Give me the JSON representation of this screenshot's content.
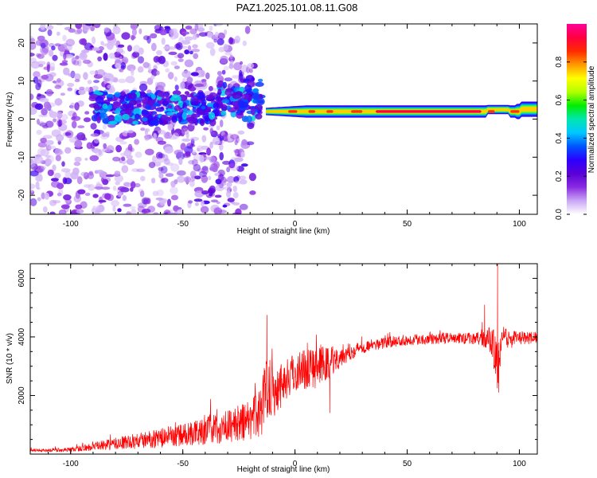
{
  "figure": {
    "title": "PAZ1.2025.101.08.11.G08"
  },
  "chart_data": [
    {
      "type": "heatmap",
      "xlabel": "Height of straight line (km)",
      "ylabel": "Frequency (Hz)",
      "xlim": [
        -118,
        108
      ],
      "ylim": [
        -25,
        25
      ],
      "x_ticks": [
        -100,
        -50,
        0,
        50,
        100
      ],
      "y_ticks": [
        -20,
        -10,
        0,
        10,
        20
      ],
      "colorbar": {
        "label": "Normalized spectral amplitude",
        "range": [
          0,
          1
        ],
        "ticks": [
          "0.0",
          "0.2",
          "0.4",
          "0.6",
          "0.8"
        ],
        "tick_values": [
          0.0,
          0.2,
          0.4,
          0.6,
          0.8
        ],
        "colormap": "rainbow (white-violet-blue-cyan-green-yellow-red-magenta)",
        "colors": [
          "#ffffff",
          "#c9a6f5",
          "#8a2be2",
          "#5a00d8",
          "#2b00ff",
          "#0055ff",
          "#00c8ff",
          "#00e6b0",
          "#00ee00",
          "#b4ff00",
          "#ffff00",
          "#ff9900",
          "#ff2a00",
          "#ff0040",
          "#ff0099"
        ]
      },
      "features": [
        {
          "region": "noise",
          "x_range": [
            -118,
            -18
          ],
          "freq_range": [
            -25,
            25
          ],
          "amplitude_level": "low (0.05-0.25)"
        },
        {
          "region": "onset",
          "x_range": [
            -90,
            -15
          ],
          "freq_center": 3,
          "freq_halfwidth": 4,
          "amplitude_level": "0.2-0.45"
        },
        {
          "region": "tone",
          "x_range": [
            -13,
            108
          ],
          "freq_center": 2,
          "freq_halfwidth": 1.2,
          "amplitude_peak": 1.0
        }
      ]
    },
    {
      "type": "line",
      "xlabel": "Height of straight line (km)",
      "ylabel": "SNR (10 * v/v)",
      "xlim": [
        -118,
        108
      ],
      "ylim": [
        0,
        6500
      ],
      "x_ticks": [
        -100,
        -50,
        0,
        50,
        100
      ],
      "y_ticks": [
        2000,
        4000,
        6000
      ],
      "series": [
        {
          "color": "#ff0000",
          "anchor_x": [
            -118,
            -100,
            -90,
            -80,
            -70,
            -60,
            -50,
            -40,
            -30,
            -20,
            -15,
            -12,
            -10,
            -5,
            0,
            5,
            10,
            15,
            20,
            25,
            30,
            40,
            50,
            60,
            70,
            80,
            85,
            88,
            90,
            92,
            95,
            100,
            108
          ],
          "anchor_y": [
            120,
            150,
            250,
            350,
            450,
            550,
            650,
            800,
            950,
            1150,
            1500,
            2600,
            2100,
            2500,
            2800,
            2950,
            3000,
            3100,
            3350,
            3500,
            3650,
            3800,
            3900,
            3950,
            3950,
            3950,
            3900,
            3900,
            2900,
            3900,
            3900,
            3950,
            3980
          ],
          "noise_amplitude": [
            0.4,
            0.5,
            0.6,
            0.6,
            0.6,
            0.6,
            0.6,
            0.6,
            0.6,
            0.6,
            0.6,
            0.5,
            0.45,
            0.3,
            0.25,
            0.25,
            0.25,
            0.2,
            0.12,
            0.08,
            0.06,
            0.05,
            0.05,
            0.05,
            0.05,
            0.05,
            0.08,
            0.15,
            0.3,
            0.15,
            0.08,
            0.06,
            0.05
          ],
          "spikes": [
            {
              "x": -12.5,
              "y": 4750
            },
            {
              "x": 90.3,
              "y": 6550
            },
            {
              "x": 90.8,
              "y": 2100
            },
            {
              "x": 84.5,
              "y": 5100
            },
            {
              "x": 5.5,
              "y": 3800
            },
            {
              "x": 15.5,
              "y": 1400
            }
          ]
        }
      ]
    }
  ]
}
